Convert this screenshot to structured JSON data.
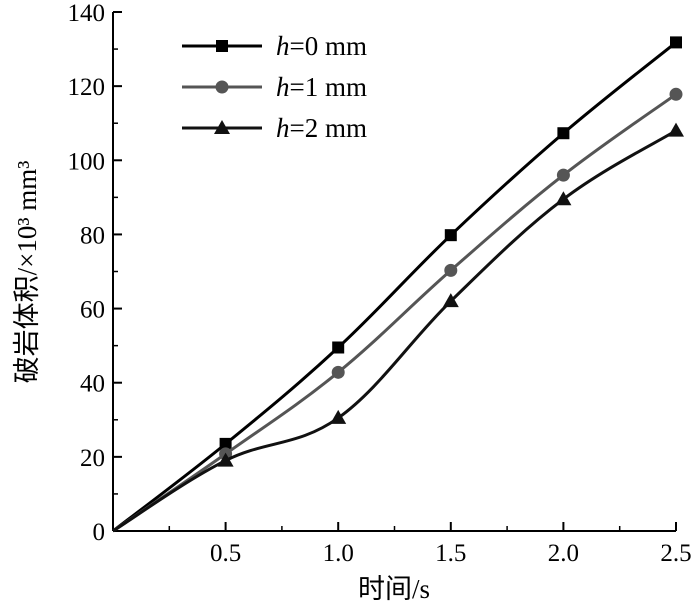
{
  "chart_data": {
    "type": "line",
    "title": "",
    "xlabel": "时间/s",
    "ylabel": "破岩体积/×10³ mm³",
    "x": [
      0,
      0.5,
      1.0,
      1.5,
      2.0,
      2.5
    ],
    "x_tick_labels": [
      "0.5",
      "1.0",
      "1.5",
      "2.0",
      "2.5"
    ],
    "x_ticks": [
      0.5,
      1.0,
      1.5,
      2.0,
      2.5
    ],
    "y_ticks": [
      0,
      20,
      40,
      60,
      80,
      100,
      120,
      140
    ],
    "y_tick_labels": [
      "0",
      "20",
      "40",
      "60",
      "80",
      "100",
      "120",
      "140"
    ],
    "xlim": [
      0,
      2.5
    ],
    "ylim": [
      0,
      140
    ],
    "grid": false,
    "legend_position": "top-left",
    "series": [
      {
        "name": "h=0 mm",
        "name_italic": "h",
        "name_rest": "=0 mm",
        "marker": "square",
        "color": "#000000",
        "values": [
          0,
          23.5,
          49.5,
          79.8,
          107.3,
          131.8
        ]
      },
      {
        "name": "h=1 mm",
        "name_italic": "h",
        "name_rest": "=1 mm",
        "marker": "circle",
        "color": "#555555",
        "values": [
          0,
          20.8,
          42.8,
          70.3,
          96.0,
          117.8
        ]
      },
      {
        "name": "h=2 mm",
        "name_italic": "h",
        "name_rest": "=2 mm",
        "marker": "triangle",
        "color": "#111111",
        "values": [
          0,
          19.0,
          30.5,
          62.0,
          89.5,
          108.0
        ]
      }
    ]
  }
}
